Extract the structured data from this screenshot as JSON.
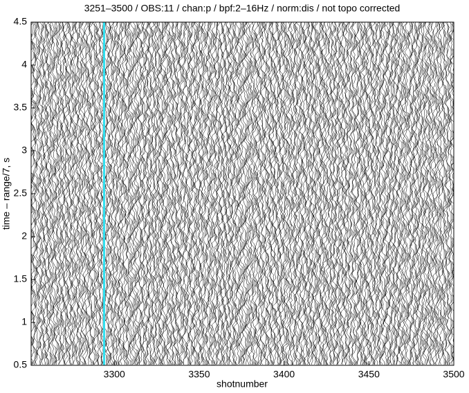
{
  "chart_data": {
    "type": "record-section",
    "title": "3251–3500 / OBS:11  / chan:p / bpf:2–16Hz / norm:dis / not topo corrected",
    "x_label": "shotnumber",
    "y_label": "time – range/7, s",
    "xlim": [
      3251,
      3500
    ],
    "xticks": [
      3300,
      3350,
      3400,
      3450,
      3500
    ],
    "ylim": [
      0.5,
      4.5
    ],
    "yticks": [
      0.5,
      1,
      1.5,
      2,
      2.5,
      3,
      3.5,
      4,
      4.5
    ],
    "highlight_x": 3294,
    "highlight_color": "#33e0f0"
  }
}
